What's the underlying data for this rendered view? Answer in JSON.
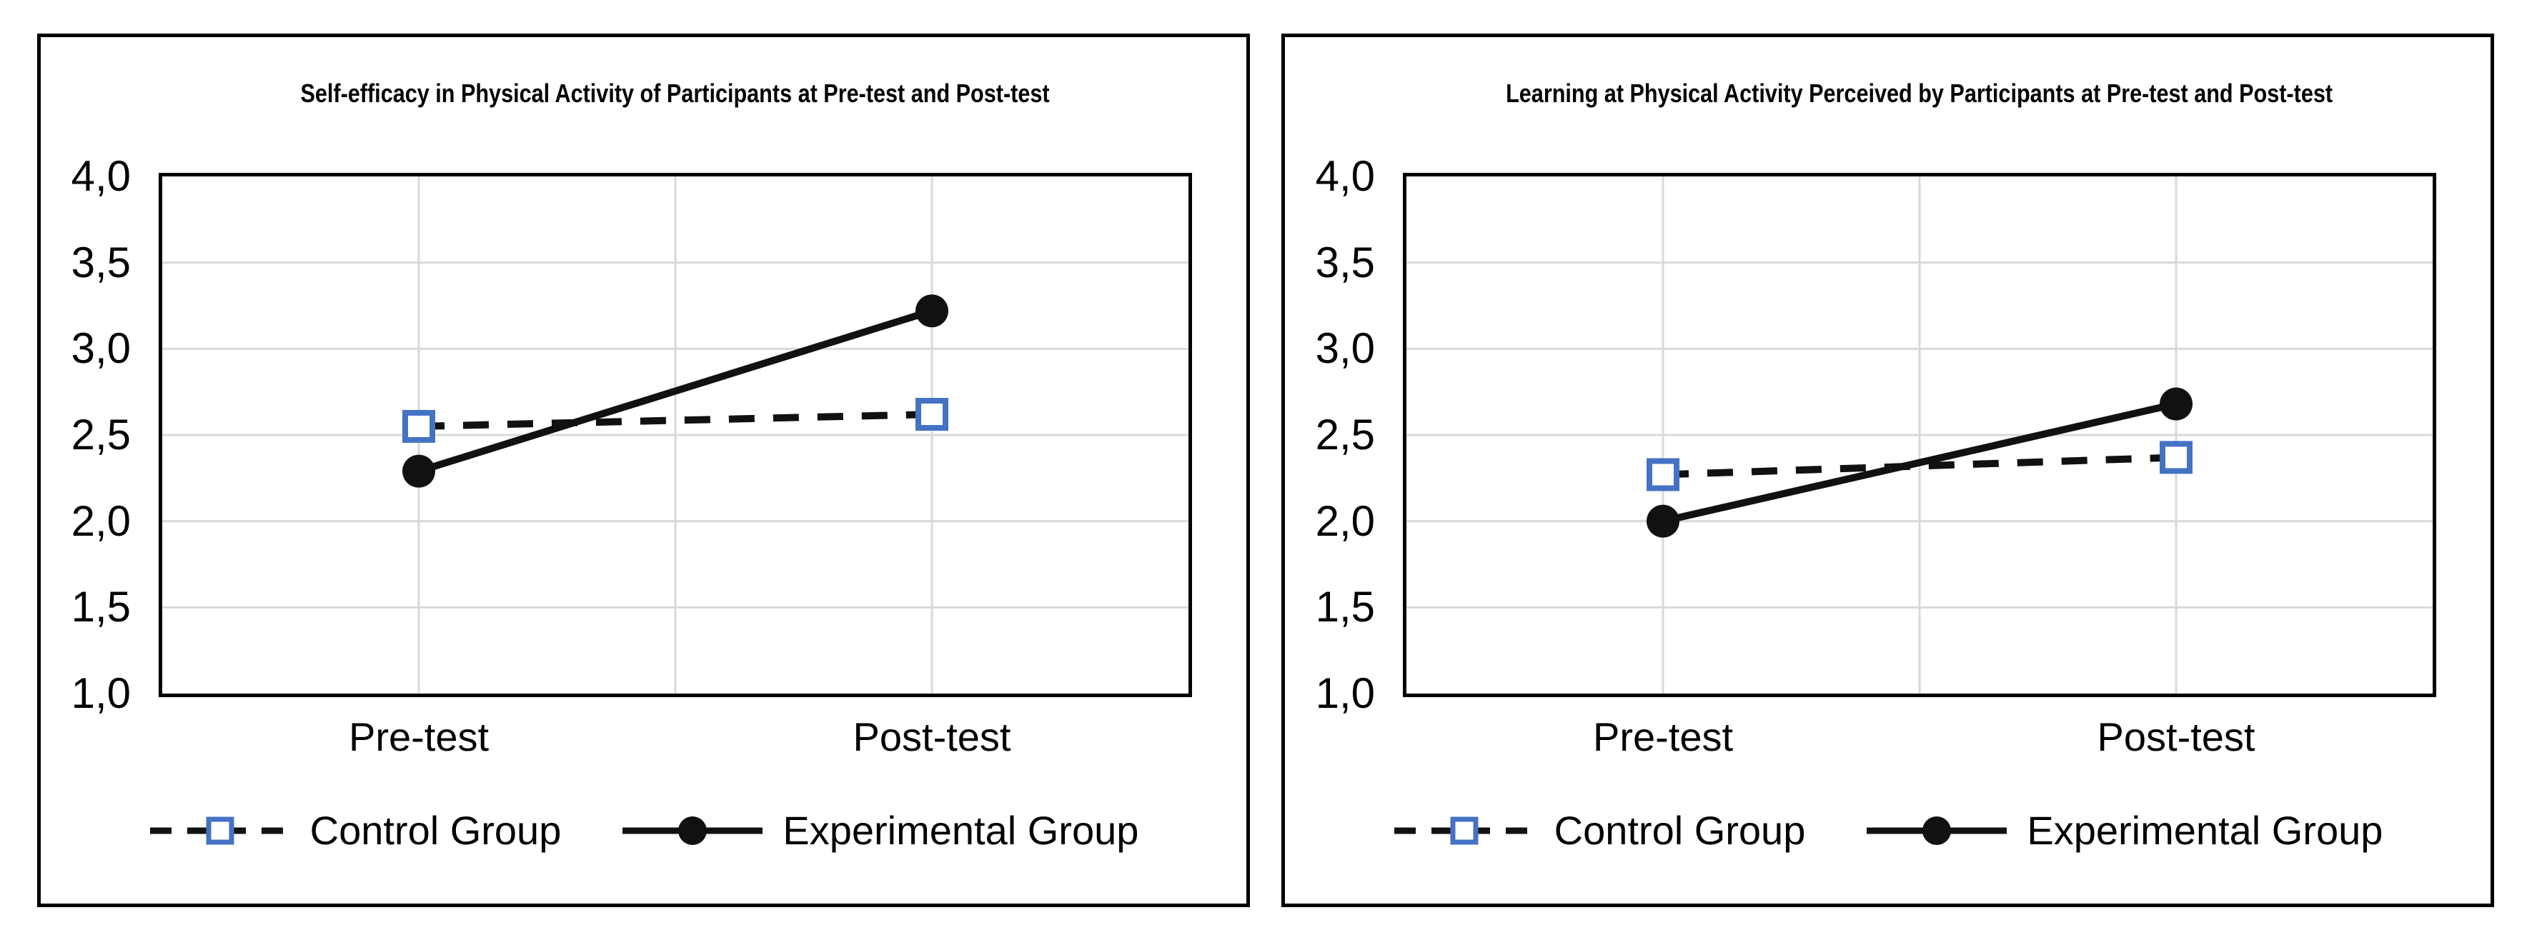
{
  "figure": {
    "background": "#ffffff",
    "panel_border_color": "#000000"
  },
  "colors": {
    "control_marker_blue": "#4472C4",
    "series_line_black": "#111111",
    "gridline_gray": "#D9D9D9",
    "plot_frame_black": "#000000",
    "text_black": "#000000"
  },
  "chart_data": [
    {
      "type": "line",
      "title": "Self-efficacy in Physical Activity of Participants at Pre-test and Post-test",
      "categories": [
        "Pre-test",
        "Post-test"
      ],
      "xlabel": "",
      "ylabel": "",
      "ylim": [
        1.0,
        4.0
      ],
      "y_tick_values": [
        4.0,
        3.5,
        3.0,
        2.5,
        2.0,
        1.5,
        1.0
      ],
      "y_tick_labels": [
        "4,0",
        "3,5",
        "3,0",
        "2,5",
        "2,0",
        "1,5",
        "1,0"
      ],
      "decimal_separator": ",",
      "grid": true,
      "vertical_gridlines": true,
      "legend_position": "bottom",
      "series": [
        {
          "name": "Control Group",
          "values": [
            2.55,
            2.62
          ],
          "line": "dashed",
          "line_color": "#111111",
          "marker": "open-square",
          "marker_color": "#4472C4"
        },
        {
          "name": "Experimental Group",
          "values": [
            2.29,
            3.22
          ],
          "line": "solid",
          "line_color": "#111111",
          "marker": "filled-circle",
          "marker_color": "#111111"
        }
      ]
    },
    {
      "type": "line",
      "title": "Learning at Physical Activity Perceived by Participants at Pre-test and Post-test",
      "categories": [
        "Pre-test",
        "Post-test"
      ],
      "xlabel": "",
      "ylabel": "",
      "ylim": [
        1.0,
        4.0
      ],
      "y_tick_values": [
        4.0,
        3.5,
        3.0,
        2.5,
        2.0,
        1.5,
        1.0
      ],
      "y_tick_labels": [
        "4,0",
        "3,5",
        "3,0",
        "2,5",
        "2,0",
        "1,5",
        "1,0"
      ],
      "decimal_separator": ",",
      "grid": true,
      "vertical_gridlines": true,
      "legend_position": "bottom",
      "series": [
        {
          "name": "Control Group",
          "values": [
            2.27,
            2.37
          ],
          "line": "dashed",
          "line_color": "#111111",
          "marker": "open-square",
          "marker_color": "#4472C4"
        },
        {
          "name": "Experimental Group",
          "values": [
            2.0,
            2.68
          ],
          "line": "solid",
          "line_color": "#111111",
          "marker": "filled-circle",
          "marker_color": "#111111"
        }
      ]
    }
  ]
}
